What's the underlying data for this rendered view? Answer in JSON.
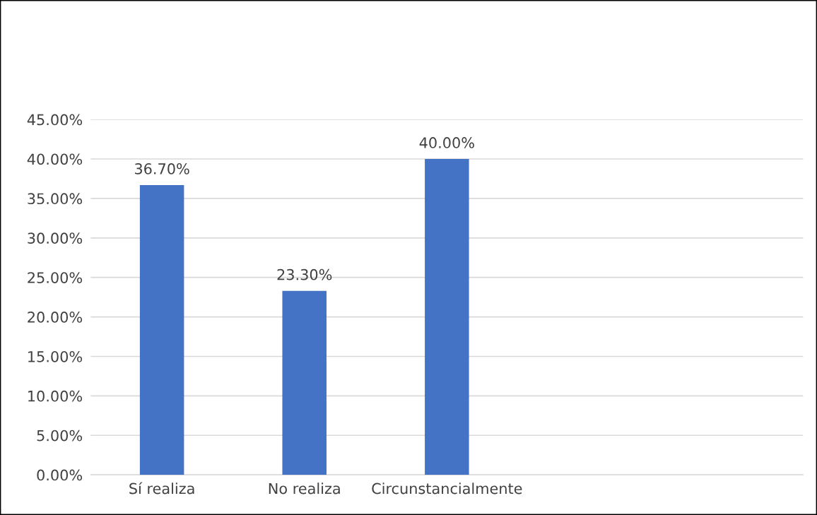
{
  "chart_data": {
    "type": "bar",
    "categories": [
      "Sí realiza",
      "No realiza",
      "Circunstancialmente",
      null,
      null
    ],
    "values": [
      36.7,
      23.3,
      40.0,
      null,
      null
    ],
    "value_labels": [
      "36.70%",
      "23.30%",
      "40.00%",
      null,
      null
    ],
    "color": "#4472c4",
    "ylim": [
      0,
      45
    ],
    "yticks": [
      {
        "value": 0,
        "label": "0.00%"
      },
      {
        "value": 5,
        "label": "5.00%"
      },
      {
        "value": 10,
        "label": "10.00%"
      },
      {
        "value": 15,
        "label": "15.00%"
      },
      {
        "value": 20,
        "label": "20.00%"
      },
      {
        "value": 25,
        "label": "25.00%"
      },
      {
        "value": 30,
        "label": "30.00%"
      },
      {
        "value": 35,
        "label": "35.00%"
      },
      {
        "value": 40,
        "label": "40.00%"
      },
      {
        "value": 45,
        "label": "45.00%"
      }
    ],
    "grid": "y",
    "legend": false
  }
}
